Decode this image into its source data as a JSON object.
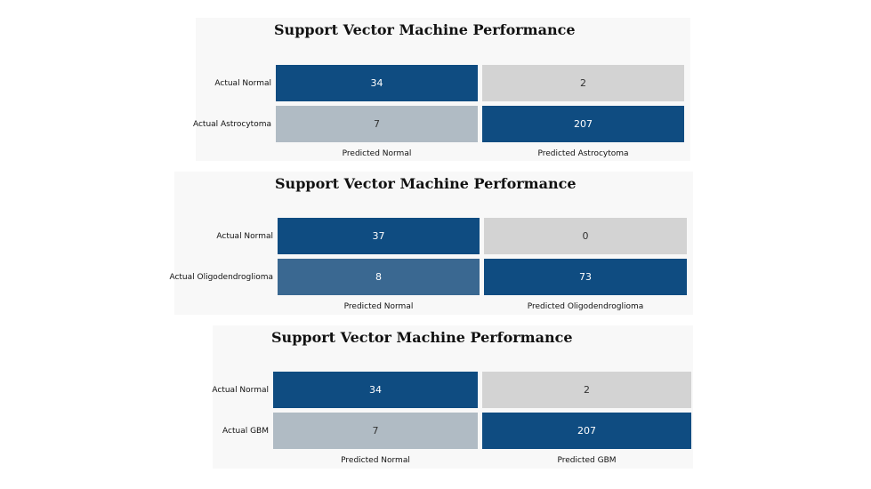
{
  "chart_data": [
    {
      "type": "heatmap",
      "title": "Support Vector Machine Performance",
      "rows": [
        "Actual Normal",
        "Actual Astrocytoma"
      ],
      "columns": [
        "Predicted Normal",
        "Predicted Astrocytoma"
      ],
      "values": [
        [
          34,
          2
        ],
        [
          7,
          207
        ]
      ],
      "colors": [
        [
          "#0f4c81",
          "#d3d3d3"
        ],
        [
          "#b0bbc4",
          "#0f4c81"
        ]
      ],
      "text_colors": [
        [
          "#ffffff",
          "#333333"
        ],
        [
          "#333333",
          "#ffffff"
        ]
      ]
    },
    {
      "type": "heatmap",
      "title": "Support Vector Machine Performance",
      "rows": [
        "Actual Normal",
        "Actual Oligodendroglioma"
      ],
      "columns": [
        "Predicted Normal",
        "Predicted Oligodendroglioma"
      ],
      "values": [
        [
          37,
          0
        ],
        [
          8,
          73
        ]
      ],
      "colors": [
        [
          "#0f4c81",
          "#d3d3d3"
        ],
        [
          "#3a6891",
          "#0f4c81"
        ]
      ],
      "text_colors": [
        [
          "#ffffff",
          "#333333"
        ],
        [
          "#ffffff",
          "#ffffff"
        ]
      ]
    },
    {
      "type": "heatmap",
      "title": "Support Vector Machine Performance",
      "rows": [
        "Actual Normal",
        "Actual GBM"
      ],
      "columns": [
        "Predicted Normal",
        "Predicted GBM"
      ],
      "values": [
        [
          34,
          2
        ],
        [
          7,
          207
        ]
      ],
      "colors": [
        [
          "#0f4c81",
          "#d3d3d3"
        ],
        [
          "#b0bbc4",
          "#0f4c81"
        ]
      ],
      "text_colors": [
        [
          "#ffffff",
          "#333333"
        ],
        [
          "#333333",
          "#ffffff"
        ]
      ]
    }
  ]
}
